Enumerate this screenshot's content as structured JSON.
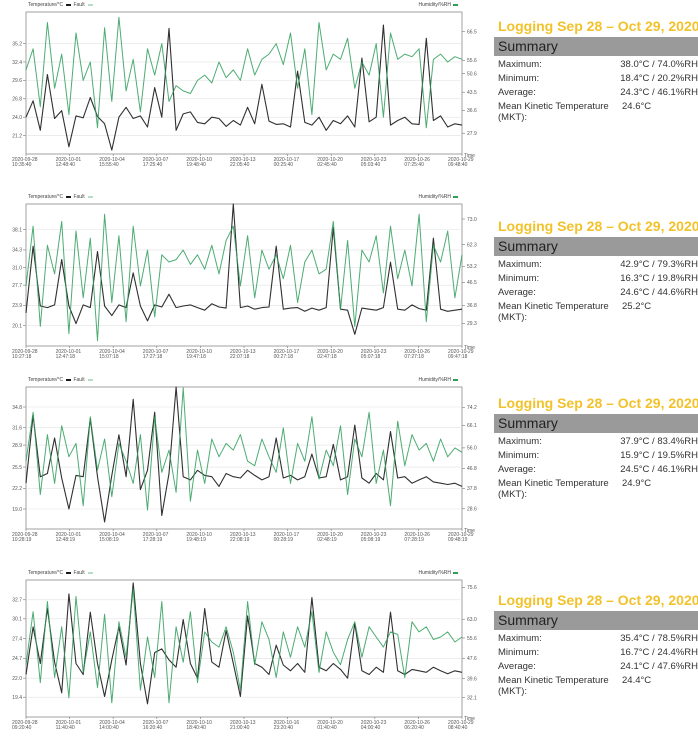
{
  "legend": {
    "temperature_label": "Temperature/°C",
    "fault_label": "Fault",
    "humidity_label": "Humidity/%RH",
    "time_label": "Time"
  },
  "colors": {
    "temperature": "#1a1a1a",
    "humidity": "#2e9e5b",
    "title_yellow": "#f2c22b",
    "summary_header_bg": "#9a9a9a",
    "grid": "#e2e2e2"
  },
  "panels": [
    {
      "title": "Logging Sep 28 – Oct 29, 2020",
      "summary_header": "Summary",
      "rows": [
        {
          "label": "Maximum:",
          "value": "38.0°C / 74.0%RH"
        },
        {
          "label": "Minimum:",
          "value": "18.4°C / 20.2%RH"
        },
        {
          "label": "Average:",
          "value": "24.3°C / 46.1%RH"
        },
        {
          "label": "Mean Kinetic Temperature (MKT):",
          "value": "24.6°C"
        }
      ]
    },
    {
      "title": "Logging Sep 28 – Oct 29, 2020",
      "summary_header": "Summary",
      "rows": [
        {
          "label": "Maximum:",
          "value": "42.9°C / 79.3%RH"
        },
        {
          "label": "Minimum:",
          "value": "16.3°C / 19.8%RH"
        },
        {
          "label": "Average:",
          "value": "24.6°C / 44.6%RH"
        },
        {
          "label": "Mean Kinetic Temperature (MKT):",
          "value": "25.2°C"
        }
      ]
    },
    {
      "title": "Logging Sep 28 – Oct 29, 2020",
      "summary_header": "Summary",
      "rows": [
        {
          "label": "Maximum:",
          "value": "37.9°C / 83.4%RH"
        },
        {
          "label": "Minimum:",
          "value": "15.9°C / 19.5%RH"
        },
        {
          "label": "Average:",
          "value": "24.5°C / 46.1%RH"
        },
        {
          "label": "Mean Kinetic Temperature (MKT):",
          "value": "24.9°C"
        }
      ]
    },
    {
      "title": "Logging Sep 28 – Oct 29, 2020",
      "summary_header": "Summary",
      "rows": [
        {
          "label": "Maximum:",
          "value": "35.4°C / 78.5%RH"
        },
        {
          "label": "Minimum:",
          "value": "16.7°C / 24.4%RH"
        },
        {
          "label": "Average:",
          "value": "24.1°C / 47.6%RH"
        },
        {
          "label": "Mean Kinetic Temperature (MKT):",
          "value": "24.4°C"
        }
      ]
    }
  ],
  "chart_data": [
    {
      "type": "line",
      "title": "",
      "xlabel": "Time",
      "ylabel": "Temperature/°C",
      "y2label": "Humidity/%RH",
      "grid": true,
      "legend": [
        "Temperature/°C",
        "Fault",
        "Humidity/%RH"
      ],
      "ylim": [
        18.4,
        40.0
      ],
      "y2lim": [
        20.0,
        74.0
      ],
      "yticks": [
        21.2,
        24.0,
        26.8,
        29.6,
        32.4,
        35.2
      ],
      "y2ticks": [
        27.9,
        36.6,
        43.5,
        50.6,
        55.6,
        66.5
      ],
      "xticks": [
        "2020-09-28 10:35:40",
        "2020-10-01 12:48:40",
        "2020-10-04 15:55:40",
        "2020-10-07 17:25:40",
        "2020-10-10 19:48:40",
        "2020-10-13 22:05:40",
        "2020-10-17 00:25:40",
        "2020-10-20 02:45:40",
        "2020-10-23 05:03:40",
        "2020-10-26 07:25:40",
        "2020-10-29 09:48:40"
      ],
      "series": [
        {
          "name": "Temperature/°C",
          "axis": "left",
          "values": [
            24.0,
            26.5,
            22.0,
            30.5,
            23.8,
            25.0,
            19.5,
            24.2,
            23.9,
            27.0,
            24.1,
            23.0,
            19.0,
            24.0,
            25.5,
            23.8,
            24.2,
            22.5,
            28.5,
            24.0,
            37.5,
            22.0,
            24.5,
            24.8,
            23.2,
            23.0,
            24.0,
            23.8,
            22.6,
            23.5,
            22.8,
            25.5,
            23.0,
            29.0,
            23.4,
            22.9,
            23.0,
            22.5,
            31.0,
            23.2,
            22.8,
            24.0,
            22.0,
            23.5,
            23.0,
            24.2,
            22.5,
            33.0,
            23.3,
            24.0,
            38.0,
            22.8,
            23.5,
            24.0,
            23.0,
            22.9,
            36.0,
            23.5,
            24.2,
            22.5,
            23.0,
            22.8
          ]
        },
        {
          "name": "Humidity/%RH",
          "axis": "right",
          "values": [
            52,
            60,
            38,
            70,
            45,
            58,
            35,
            66,
            48,
            55,
            30,
            68,
            40,
            72,
            44,
            56,
            36,
            60,
            50,
            62,
            40,
            46,
            44,
            43,
            48,
            50,
            47,
            55,
            49,
            52,
            48,
            60,
            50,
            56,
            58,
            62,
            54,
            66,
            45,
            60,
            35,
            70,
            52,
            58,
            56,
            64,
            45,
            55,
            50,
            62,
            34,
            66,
            56,
            58,
            57,
            60,
            30,
            56,
            58,
            55,
            57,
            56
          ]
        }
      ]
    },
    {
      "type": "line",
      "title": "",
      "xlabel": "Time",
      "ylabel": "Temperature/°C",
      "y2label": "Humidity/%RH",
      "grid": true,
      "legend": [
        "Temperature/°C",
        "Fault",
        "Humidity/%RH"
      ],
      "ylim": [
        16.3,
        42.9
      ],
      "y2lim": [
        19.8,
        79.3
      ],
      "yticks": [
        20.1,
        23.9,
        27.7,
        31.0,
        34.3,
        38.1
      ],
      "y2ticks": [
        29.3,
        36.8,
        46.5,
        53.2,
        62.3,
        73.0
      ],
      "xticks": [
        "2020-09-28 10:27:18",
        "2020-10-01 12:47:18",
        "2020-10-04 15:07:18",
        "2020-10-07 17:27:18",
        "2020-10-10 19:47:18",
        "2020-10-13 22:07:18",
        "2020-10-17 00:27:18",
        "2020-10-20 02:47:18",
        "2020-10-23 05:07:18",
        "2020-10-26 07:27:18",
        "2020-10-29 09:47:18"
      ],
      "series": [
        {
          "name": "Temperature/°C",
          "axis": "left",
          "values": [
            22.5,
            35.0,
            23.8,
            23.5,
            24.0,
            32.5,
            23.8,
            20.5,
            24.0,
            23.5,
            34.0,
            23.8,
            22.0,
            24.0,
            23.5,
            30.0,
            23.8,
            21.0,
            24.0,
            23.6,
            26.0,
            23.5,
            23.8,
            24.0,
            23.5,
            23.0,
            24.2,
            23.6,
            23.4,
            42.9,
            23.5,
            23.8,
            23.2,
            23.5,
            23.6,
            35.0,
            23.2,
            23.4,
            23.5,
            22.8,
            23.4,
            23.0,
            23.5,
            38.5,
            23.2,
            23.0,
            18.5,
            23.4,
            23.2,
            23.0,
            23.5,
            32.0,
            23.2,
            23.0,
            24.0,
            23.3,
            23.0,
            36.5,
            23.2,
            22.8,
            23.0,
            23.2
          ]
        },
        {
          "name": "Humidity/%RH",
          "axis": "right",
          "values": [
            45,
            70,
            28,
            62,
            50,
            72,
            25,
            68,
            40,
            65,
            22,
            75,
            38,
            66,
            30,
            70,
            45,
            60,
            32,
            58,
            55,
            56,
            60,
            54,
            58,
            52,
            62,
            50,
            64,
            70,
            45,
            66,
            40,
            60,
            52,
            58,
            48,
            62,
            38,
            55,
            60,
            50,
            52,
            72,
            35,
            64,
            28,
            60,
            55,
            66,
            42,
            70,
            48,
            60,
            45,
            75,
            30,
            62,
            55,
            68,
            40,
            58
          ]
        }
      ]
    },
    {
      "type": "line",
      "title": "",
      "xlabel": "Time",
      "ylabel": "Temperature/°C",
      "y2label": "Humidity/%RH",
      "grid": true,
      "legend": [
        "Temperature/°C",
        "Fault",
        "Humidity/%RH"
      ],
      "ylim": [
        15.9,
        37.9
      ],
      "y2lim": [
        19.5,
        83.4
      ],
      "yticks": [
        19.0,
        22.2,
        25.5,
        28.9,
        31.6,
        34.8
      ],
      "y2ticks": [
        28.6,
        37.8,
        46.8,
        56.0,
        66.1,
        74.2
      ],
      "xticks": [
        "2020-09-28 10:28:19",
        "2020-10-01 12:48:19",
        "2020-10-04 15:08:19",
        "2020-10-07 17:28:19",
        "2020-10-10 19:48:19",
        "2020-10-13 22:08:19",
        "2020-10-17 00:28:19",
        "2020-10-20 02:48:19",
        "2020-10-23 05:08:19",
        "2020-10-26 07:28:19",
        "2020-10-29 09:48:19"
      ],
      "series": [
        {
          "name": "Temperature/°C",
          "axis": "left",
          "values": [
            23.0,
            33.5,
            24.0,
            24.5,
            30.0,
            23.8,
            19.0,
            24.2,
            24.0,
            33.0,
            24.0,
            17.0,
            24.2,
            30.5,
            24.0,
            36.0,
            22.0,
            25.0,
            34.0,
            18.0,
            24.5,
            37.9,
            24.0,
            23.5,
            25.0,
            24.2,
            24.0,
            22.5,
            24.5,
            24.0,
            23.8,
            25.0,
            24.2,
            23.5,
            24.0,
            30.0,
            23.8,
            24.2,
            23.5,
            24.0,
            27.5,
            23.8,
            24.0,
            29.0,
            23.5,
            24.0,
            32.0,
            23.8,
            23.0,
            24.5,
            23.5,
            31.0,
            23.8,
            24.0,
            23.0,
            23.5,
            24.0,
            23.2,
            23.0,
            22.8,
            23.0,
            22.5
          ]
        },
        {
          "name": "Humidity/%RH",
          "axis": "right",
          "values": [
            50,
            72,
            35,
            62,
            40,
            66,
            52,
            58,
            30,
            70,
            46,
            60,
            34,
            58,
            50,
            40,
            62,
            28,
            70,
            45,
            55,
            36,
            83,
            32,
            55,
            40,
            60,
            52,
            58,
            55,
            62,
            50,
            48,
            60,
            52,
            45,
            65,
            40,
            58,
            50,
            70,
            42,
            55,
            48,
            66,
            35,
            60,
            52,
            72,
            40,
            55,
            30,
            68,
            48,
            62,
            55,
            58,
            50,
            60,
            52,
            56,
            54
          ]
        }
      ]
    },
    {
      "type": "line",
      "title": "",
      "xlabel": "Time",
      "ylabel": "Temperature/°C",
      "y2label": "Humidity/%RH",
      "grid": true,
      "legend": [
        "Temperature/°C",
        "Fault",
        "Humidity/%RH"
      ],
      "ylim": [
        16.7,
        35.4
      ],
      "y2lim": [
        24.4,
        78.5
      ],
      "yticks": [
        19.4,
        22.0,
        24.7,
        27.4,
        30.1,
        32.7
      ],
      "y2ticks": [
        32.1,
        39.6,
        47.6,
        55.6,
        63.0,
        75.6
      ],
      "xticks": [
        "2020-09-28 09:20:40",
        "2020-10-01 11:40:40",
        "2020-10-04 14:00:40",
        "2020-10-07 16:20:40",
        "2020-10-10 18:40:40",
        "2020-10-13 21:00:40",
        "2020-10-16 23:20:40",
        "2020-10-20 01:40:40",
        "2020-10-23 04:00:40",
        "2020-10-26 06:20:40",
        "2020-10-29 08:40:40"
      ],
      "series": [
        {
          "name": "Temperature/°C",
          "axis": "left",
          "values": [
            22.5,
            29.0,
            24.0,
            31.5,
            24.2,
            20.0,
            33.5,
            24.0,
            22.5,
            31.0,
            24.0,
            19.5,
            24.5,
            29.0,
            23.8,
            35.0,
            24.0,
            18.5,
            25.5,
            26.0,
            24.5,
            23.5,
            30.0,
            24.0,
            22.0,
            31.5,
            24.2,
            23.5,
            28.5,
            24.0,
            19.5,
            30.5,
            24.0,
            23.5,
            22.5,
            26.5,
            23.8,
            23.0,
            24.0,
            22.8,
            33.0,
            23.5,
            23.0,
            24.0,
            23.2,
            22.0,
            29.5,
            23.0,
            22.5,
            23.5,
            22.8,
            31.0,
            23.0,
            22.5,
            23.2,
            23.0,
            22.8,
            23.5,
            23.0,
            22.6,
            23.0,
            22.8
          ]
        },
        {
          "name": "Humidity/%RH",
          "axis": "right",
          "values": [
            45,
            66,
            38,
            70,
            40,
            60,
            32,
            72,
            42,
            58,
            36,
            65,
            30,
            62,
            48,
            75,
            35,
            56,
            40,
            70,
            30,
            60,
            46,
            66,
            38,
            58,
            54,
            52,
            60,
            50,
            35,
            70,
            45,
            62,
            55,
            40,
            58,
            48,
            60,
            52,
            66,
            42,
            58,
            50,
            45,
            55,
            62,
            48,
            60,
            56,
            52,
            58,
            57,
            40,
            62,
            58,
            60,
            55,
            56,
            58,
            54,
            56
          ]
        }
      ]
    }
  ]
}
